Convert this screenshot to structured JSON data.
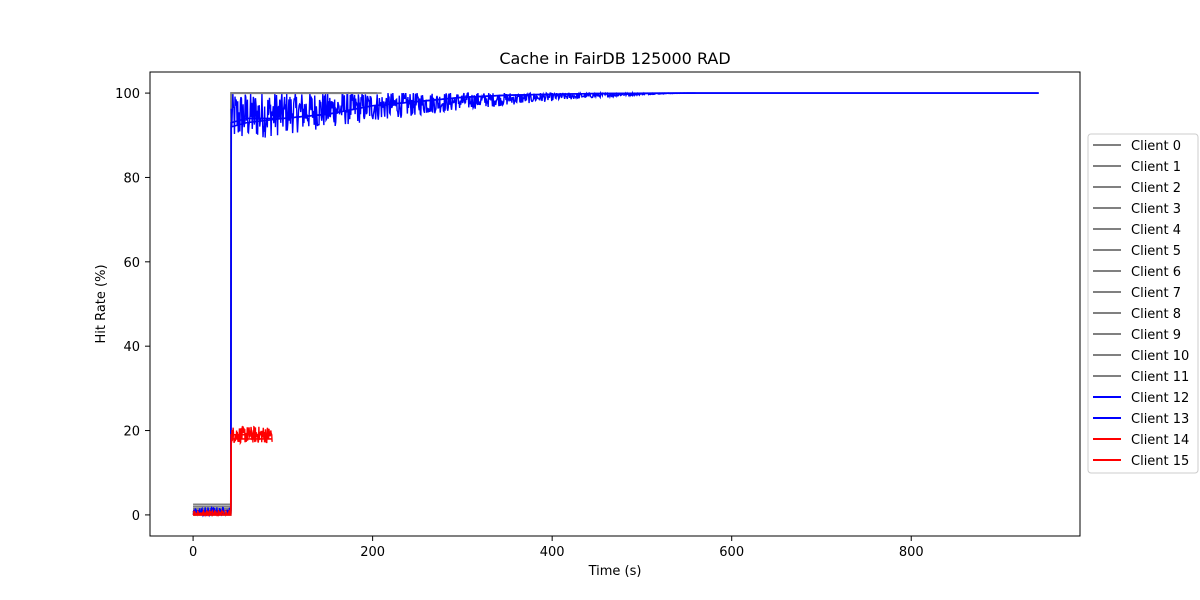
{
  "chart_data": {
    "type": "line",
    "title": "Cache in  FairDB 125000 RAD",
    "xlabel": "Time (s)",
    "ylabel": "Hit Rate (%)",
    "xlim": [
      -48,
      988
    ],
    "ylim": [
      -5,
      105
    ],
    "xticks": [
      0,
      200,
      400,
      600,
      800
    ],
    "yticks": [
      0,
      20,
      40,
      60,
      80,
      100
    ],
    "grid": false,
    "legend_position": "right",
    "colors": {
      "gray": "#808080",
      "blue": "#0000ff",
      "red": "#ff0000"
    },
    "series": [
      {
        "name": "Client 0",
        "color": "#808080",
        "x": [
          0,
          42,
          42.5,
          190
        ],
        "y": [
          1,
          1,
          100,
          100
        ]
      },
      {
        "name": "Client 1",
        "color": "#808080",
        "x": [
          0,
          42,
          42.5,
          200
        ],
        "y": [
          2,
          2,
          100,
          100
        ]
      },
      {
        "name": "Client 2",
        "color": "#808080",
        "x": [
          0,
          42,
          42.5,
          185
        ],
        "y": [
          0,
          0,
          100,
          100
        ]
      },
      {
        "name": "Client 3",
        "color": "#808080",
        "x": [
          0,
          42,
          42.5,
          195
        ],
        "y": [
          1.5,
          1.5,
          100,
          100
        ]
      },
      {
        "name": "Client 4",
        "color": "#808080",
        "x": [
          0,
          42,
          42.5,
          180
        ],
        "y": [
          0.5,
          0.5,
          100,
          100
        ]
      },
      {
        "name": "Client 5",
        "color": "#808080",
        "x": [
          0,
          42,
          42.5,
          205
        ],
        "y": [
          2,
          2,
          100,
          100
        ]
      },
      {
        "name": "Client 6",
        "color": "#808080",
        "x": [
          0,
          42,
          42.5,
          175
        ],
        "y": [
          1,
          1,
          100,
          100
        ]
      },
      {
        "name": "Client 7",
        "color": "#808080",
        "x": [
          0,
          42,
          42.5,
          210
        ],
        "y": [
          0,
          0,
          100,
          100
        ]
      },
      {
        "name": "Client 8",
        "color": "#808080",
        "x": [
          0,
          42,
          42.5,
          190
        ],
        "y": [
          1.5,
          1.5,
          100,
          100
        ]
      },
      {
        "name": "Client 9",
        "color": "#808080",
        "x": [
          0,
          42,
          42.5,
          200
        ],
        "y": [
          2.5,
          2.5,
          100,
          100
        ]
      },
      {
        "name": "Client 10",
        "color": "#808080",
        "x": [
          0,
          42,
          42.5,
          188
        ],
        "y": [
          0.5,
          0.5,
          100,
          100
        ]
      },
      {
        "name": "Client 11",
        "color": "#808080",
        "x": [
          0,
          42,
          42.5,
          202
        ],
        "y": [
          1,
          1,
          100,
          100
        ]
      },
      {
        "name": "Client 12",
        "color": "#0000ff",
        "x": [
          0,
          42,
          42.5,
          60,
          100,
          150,
          200,
          250,
          300,
          350,
          400,
          450,
          550,
          942
        ],
        "y": [
          1,
          1,
          93,
          94,
          94,
          95,
          97,
          98,
          99,
          99.5,
          99.7,
          99.9,
          100,
          100
        ]
      },
      {
        "name": "Client 13",
        "color": "#0000ff",
        "x": [
          0,
          42,
          42.5,
          60,
          100,
          150,
          200,
          250,
          300,
          350,
          400,
          450,
          550,
          942
        ],
        "y": [
          0.5,
          0.5,
          92,
          93,
          94,
          95,
          97,
          98,
          99,
          99.5,
          99.7,
          99.9,
          100,
          100
        ]
      },
      {
        "name": "Client 14",
        "color": "#ff0000",
        "x": [
          0,
          42,
          42.5,
          88
        ],
        "y": [
          0.5,
          0.5,
          19,
          19
        ]
      },
      {
        "name": "Client 15",
        "color": "#ff0000",
        "x": [
          0,
          42,
          42.5,
          88
        ],
        "y": [
          1,
          1,
          19,
          19
        ]
      }
    ],
    "noise": {
      "blue_band": {
        "x_start": 42.5,
        "x_end": 560,
        "amplitude_at_start": 6,
        "decay": "to 0 by x=560"
      },
      "red_band": {
        "x_start": 42.5,
        "x_end": 88,
        "amplitude": 2
      },
      "pre_jump": {
        "x_start": 0,
        "x_end": 42,
        "amplitude": 1.5
      }
    }
  }
}
